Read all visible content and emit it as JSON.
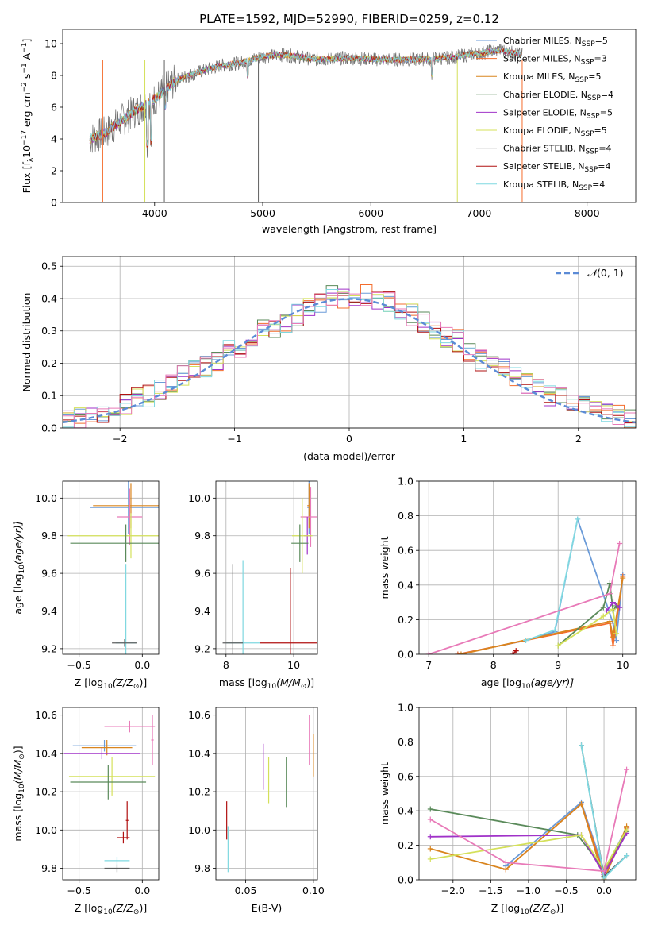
{
  "figure": {
    "title": "PLATE=1592, MJD=52990, FIBERID=0259, z=0.12",
    "series_colors": {
      "chabrier_miles": "#6b9bd8",
      "salpeter_miles": "#f46c2c",
      "kroupa_miles": "#d9851f",
      "chabrier_elodie": "#5a8a5a",
      "salpeter_elodie": "#a032c8",
      "kroupa_elodie": "#d4e05a",
      "chabrier_stelib": "#606060",
      "salpeter_stelib": "#b01010",
      "kroupa_stelib": "#7fd8e0",
      "kroupa_pink": "#e87ab8"
    }
  },
  "chart_data": [
    {
      "id": "spectrum",
      "type": "line",
      "title": "PLATE=1592, MJD=52990, FIBERID=0259, z=0.12",
      "xlabel": "wavelength [Angstrom, rest frame]",
      "ylabel_main": "Flux [f",
      "ylabel_sub": "λ",
      "ylabel_mid": "10",
      "ylabel_exp1": "−17",
      "ylabel_unit": " erg cm",
      "ylabel_exp2": "−2",
      "ylabel_unit2": " s",
      "ylabel_exp3": "−1",
      "ylabel_unit3": " A",
      "ylabel_exp4": "−1",
      "ylabel_end": "]",
      "xlim": [
        3150,
        8450
      ],
      "ylim": [
        0,
        10.9
      ],
      "xticks": [
        "4000",
        "5000",
        "6000",
        "7000",
        "8000"
      ],
      "yticks": [
        "0",
        "2",
        "4",
        "6",
        "8",
        "10"
      ],
      "grid": false,
      "legend_position": "right",
      "legend": [
        {
          "label": "Chabrier MILES, N",
          "sub": "SSP",
          "tail": "=5",
          "color": "#6b9bd8"
        },
        {
          "label": "Salpeter MILES, N",
          "sub": "SSP",
          "tail": "=3",
          "color": "#f46c2c"
        },
        {
          "label": "Kroupa MILES, N",
          "sub": "SSP",
          "tail": "=5",
          "color": "#d9851f"
        },
        {
          "label": "Chabrier ELODIE, N",
          "sub": "SSP",
          "tail": "=4",
          "color": "#5a8a5a"
        },
        {
          "label": "Salpeter ELODIE, N",
          "sub": "SSP",
          "tail": "=5",
          "color": "#a032c8"
        },
        {
          "label": "Kroupa ELODIE, N",
          "sub": "SSP",
          "tail": "=5",
          "color": "#d4e05a"
        },
        {
          "label": "Chabrier STELIB, N",
          "sub": "SSP",
          "tail": "=4",
          "color": "#606060"
        },
        {
          "label": "Salpeter STELIB, N",
          "sub": "SSP",
          "tail": "=4",
          "color": "#b01010"
        },
        {
          "label": "Kroupa STELIB, N",
          "sub": "SSP",
          "tail": "=4",
          "color": "#7fd8e0"
        }
      ],
      "continuum": {
        "x": [
          3400,
          3550,
          3700,
          3850,
          4000,
          4200,
          4400,
          4600,
          4800,
          5000,
          5200,
          5500,
          5800,
          6100,
          6400,
          6700,
          7000,
          7200,
          7400
        ],
        "y": [
          4.0,
          4.4,
          5.2,
          5.9,
          6.5,
          7.7,
          8.2,
          8.6,
          8.8,
          9.2,
          9.3,
          9.0,
          9.1,
          9.0,
          9.0,
          9.1,
          9.4,
          9.6,
          9.3
        ]
      }
    },
    {
      "id": "residuals",
      "type": "line",
      "xlabel": "(data-model)/error",
      "ylabel": "Normed distribution",
      "xlim": [
        -2.5,
        2.5
      ],
      "ylim": [
        0,
        0.53
      ],
      "xticks": [
        "−2",
        "−1",
        "0",
        "1",
        "2"
      ],
      "yticks": [
        "0.0",
        "0.1",
        "0.2",
        "0.3",
        "0.4",
        "0.5"
      ],
      "grid": true,
      "legend_position": "top-right",
      "legend_label_n": "𝒩",
      "legend_label_rest": "(0, 1)",
      "gaussian": {
        "mu": 0,
        "sigma": 1,
        "color": "#5b8bd6"
      },
      "histogram_x": [
        -2.5,
        -2.4,
        -2.3,
        -2.2,
        -2.1,
        -2.0,
        -1.9,
        -1.8,
        -1.7,
        -1.6,
        -1.5,
        -1.4,
        -1.3,
        -1.2,
        -1.1,
        -1.0,
        -0.9,
        -0.8,
        -0.7,
        -0.6,
        -0.5,
        -0.4,
        -0.3,
        -0.2,
        -0.1,
        0.0,
        0.1,
        0.2,
        0.3,
        0.4,
        0.5,
        0.6,
        0.7,
        0.8,
        0.9,
        1.0,
        1.1,
        1.2,
        1.3,
        1.4,
        1.5,
        1.6,
        1.7,
        1.8,
        1.9,
        2.0,
        2.1,
        2.2,
        2.3,
        2.4,
        2.5
      ],
      "histogram_y": [
        0.03,
        0.03,
        0.04,
        0.05,
        0.06,
        0.07,
        0.09,
        0.1,
        0.12,
        0.14,
        0.16,
        0.18,
        0.19,
        0.21,
        0.24,
        0.25,
        0.27,
        0.3,
        0.31,
        0.33,
        0.35,
        0.37,
        0.39,
        0.41,
        0.4,
        0.4,
        0.41,
        0.4,
        0.39,
        0.37,
        0.35,
        0.33,
        0.31,
        0.28,
        0.27,
        0.24,
        0.21,
        0.2,
        0.18,
        0.16,
        0.14,
        0.12,
        0.1,
        0.09,
        0.08,
        0.07,
        0.05,
        0.05,
        0.04,
        0.03
      ],
      "histogram_colors": [
        "#6b9bd8",
        "#f46c2c",
        "#5a8a5a",
        "#a032c8",
        "#d4e05a",
        "#b01010",
        "#7fd8e0",
        "#e87ab8"
      ]
    },
    {
      "id": "age_vs_Z",
      "type": "scatter",
      "xlabel_pre": "Z [log",
      "xlabel_sub": "10",
      "xlabel_post": "(Z/Z",
      "xlabel_sun": "⊙",
      "xlabel_end": ")]",
      "ylabel_pre": "age  [log",
      "ylabel_sub": "10",
      "ylabel_post": "(age/yr)]",
      "xlim": [
        -0.63,
        0.13
      ],
      "ylim": [
        9.17,
        10.09
      ],
      "xticks": [
        "−0.5",
        "0.0"
      ],
      "yticks": [
        "9.2",
        "9.4",
        "9.6",
        "9.8",
        "10.0"
      ],
      "grid": true,
      "errorbars": [
        {
          "x": -0.11,
          "y": 9.95,
          "xerr": 0.3,
          "yerr": 0.14,
          "color": "#6b9bd8"
        },
        {
          "x": -0.09,
          "y": 9.96,
          "xerr": 0.3,
          "yerr": 0.12,
          "color": "#d9851f"
        },
        {
          "x": -0.1,
          "y": 9.9,
          "xerr": 0.1,
          "yerr": 0.15,
          "color": "#e87ab8"
        },
        {
          "x": -0.09,
          "y": 9.8,
          "xerr": 0.5,
          "yerr": 0.12,
          "color": "#d4e05a"
        },
        {
          "x": -0.13,
          "y": 9.76,
          "xerr": 0.44,
          "yerr": 0.1,
          "color": "#5a8a5a"
        },
        {
          "x": -0.13,
          "y": 9.23,
          "xerr": 0.08,
          "yerr": 0.42,
          "color": "#7fd8e0"
        },
        {
          "x": -0.14,
          "y": 9.23,
          "xerr": 0.1,
          "yerr": 0.02,
          "color": "#606060"
        }
      ]
    },
    {
      "id": "age_vs_mass",
      "type": "scatter",
      "xlabel_pre": "mass [log",
      "xlabel_sub": "10",
      "xlabel_post": "(M/M",
      "xlabel_sun": "⊙",
      "xlabel_end": ")]",
      "xlim": [
        7.7,
        10.7
      ],
      "ylim": [
        9.17,
        10.09
      ],
      "xticks": [
        "8",
        "10"
      ],
      "yticks": [
        "9.2",
        "9.4",
        "9.6",
        "9.8",
        "10.0"
      ],
      "grid": true,
      "errorbars": [
        {
          "x": 10.45,
          "y": 9.95,
          "xerr": 0.05,
          "yerr": 0.14,
          "color": "#6b9bd8"
        },
        {
          "x": 10.45,
          "y": 9.96,
          "xerr": 0.05,
          "yerr": 0.12,
          "color": "#d9851f"
        },
        {
          "x": 10.5,
          "y": 9.9,
          "xerr": 0.3,
          "yerr": 0.16,
          "color": "#e87ab8"
        },
        {
          "x": 10.4,
          "y": 9.8,
          "xerr": 0.1,
          "yerr": 0.1,
          "color": "#a032c8"
        },
        {
          "x": 10.25,
          "y": 9.8,
          "xerr": 0.3,
          "yerr": 0.2,
          "color": "#d4e05a"
        },
        {
          "x": 10.18,
          "y": 9.76,
          "xerr": 0.25,
          "yerr": 0.1,
          "color": "#5a8a5a"
        },
        {
          "x": 9.9,
          "y": 9.23,
          "xerr": 0.9,
          "yerr": 0.4,
          "color": "#b01010"
        },
        {
          "x": 8.5,
          "y": 9.23,
          "xerr": 0.5,
          "yerr": 0.44,
          "color": "#7fd8e0"
        },
        {
          "x": 8.2,
          "y": 9.23,
          "xerr": 0.3,
          "yerr": 0.42,
          "color": "#606060"
        }
      ]
    },
    {
      "id": "weight_vs_age",
      "type": "line",
      "xlabel_pre": "age  [log",
      "xlabel_sub": "10",
      "xlabel_post": "(age/yr)]",
      "ylabel": "mass weight",
      "xlim": [
        6.85,
        10.2
      ],
      "ylim": [
        0,
        1.0
      ],
      "xticks": [
        "7",
        "8",
        "9",
        "10"
      ],
      "yticks": [
        "0.0",
        "0.2",
        "0.4",
        "0.6",
        "0.8",
        "1.0"
      ],
      "grid": true,
      "series": [
        {
          "color": "#6b9bd8",
          "x": [
            7.45,
            8.5,
            8.95,
            9.3,
            9.85,
            9.9,
            10.0
          ],
          "y": [
            0.0,
            0.08,
            0.13,
            0.78,
            0.18,
            0.08,
            0.46
          ]
        },
        {
          "color": "#f46c2c",
          "x": [
            7.45,
            9.8,
            9.85,
            10.0
          ],
          "y": [
            0.0,
            0.18,
            0.05,
            0.45
          ]
        },
        {
          "color": "#d9851f",
          "x": [
            7.5,
            9.8,
            9.85,
            10.0
          ],
          "y": [
            0.0,
            0.19,
            0.1,
            0.44
          ]
        },
        {
          "color": "#5a8a5a",
          "x": [
            9.0,
            9.7,
            9.8,
            9.85,
            9.9
          ],
          "y": [
            0.05,
            0.27,
            0.41,
            0.25,
            0.28
          ]
        },
        {
          "color": "#a032c8",
          "x": [
            9.75,
            9.85,
            9.95
          ],
          "y": [
            0.25,
            0.3,
            0.27
          ]
        },
        {
          "color": "#d4e05a",
          "x": [
            9.0,
            9.7,
            9.85,
            9.9
          ],
          "y": [
            0.05,
            0.22,
            0.26,
            0.12
          ]
        },
        {
          "color": "#7fd8e0",
          "x": [
            8.5,
            8.95,
            9.3
          ],
          "y": [
            0.08,
            0.14,
            0.78
          ]
        },
        {
          "color": "#b01010",
          "x": [
            8.3,
            8.35
          ],
          "y": [
            0.0,
            0.02
          ]
        },
        {
          "color": "#e87ab8",
          "x": [
            7.0,
            9.8,
            9.95
          ],
          "y": [
            0.0,
            0.35,
            0.64
          ]
        }
      ]
    },
    {
      "id": "mass_vs_Z",
      "type": "scatter",
      "xlabel_pre": "Z [log",
      "xlabel_sub": "10",
      "xlabel_post": "(Z/Z",
      "xlabel_sun": "⊙",
      "xlabel_end": ")]",
      "ylabel_pre": "mass [log",
      "ylabel_sub": "10",
      "ylabel_post": "(M/M",
      "ylabel_sun": "⊙",
      "ylabel_end": ")]",
      "xlim": [
        -0.63,
        0.13
      ],
      "ylim": [
        9.74,
        10.64
      ],
      "xticks": [
        "−0.5",
        "0.0"
      ],
      "yticks": [
        "9.8",
        "10.0",
        "10.2",
        "10.4",
        "10.6"
      ],
      "grid": true,
      "errorbars": [
        {
          "x": -0.1,
          "y": 10.54,
          "xerr": 0.2,
          "yerr": 0.03,
          "color": "#e87ab8"
        },
        {
          "x": 0.08,
          "y": 10.47,
          "xerr": 0.01,
          "yerr": 0.13,
          "color": "#e87ab8"
        },
        {
          "x": -0.3,
          "y": 10.44,
          "xerr": 0.25,
          "yerr": 0.03,
          "color": "#6b9bd8"
        },
        {
          "x": -0.28,
          "y": 10.43,
          "xerr": 0.2,
          "yerr": 0.04,
          "color": "#d9851f"
        },
        {
          "x": -0.32,
          "y": 10.4,
          "xerr": 0.3,
          "yerr": 0.03,
          "color": "#a032c8"
        },
        {
          "x": -0.24,
          "y": 10.28,
          "xerr": 0.34,
          "yerr": 0.1,
          "color": "#d4e05a"
        },
        {
          "x": -0.27,
          "y": 10.25,
          "xerr": 0.3,
          "yerr": 0.09,
          "color": "#5a8a5a"
        },
        {
          "x": -0.12,
          "y": 10.05,
          "xerr": 0.01,
          "yerr": 0.1,
          "color": "#b01010"
        },
        {
          "x": -0.15,
          "y": 9.96,
          "xerr": 0.05,
          "yerr": 0.03,
          "color": "#b01010"
        },
        {
          "x": -0.2,
          "y": 9.84,
          "xerr": 0.1,
          "yerr": 0.02,
          "color": "#7fd8e0"
        },
        {
          "x": -0.2,
          "y": 9.8,
          "xerr": 0.1,
          "yerr": 0.02,
          "color": "#606060"
        }
      ]
    },
    {
      "id": "mass_vs_EBV",
      "type": "scatter",
      "xlabel": "E(B-V)",
      "xlim": [
        0.028,
        0.103
      ],
      "ylim": [
        9.74,
        10.64
      ],
      "xticks": [
        "0.05",
        "0.10"
      ],
      "yticks": [
        "9.8",
        "10.0",
        "10.2",
        "10.4",
        "10.6"
      ],
      "grid": true,
      "errorbars": [
        {
          "x": 0.097,
          "y": 10.47,
          "xerr": 0.0,
          "yerr": 0.13,
          "color": "#e87ab8"
        },
        {
          "x": 0.1,
          "y": 10.39,
          "xerr": 0.0,
          "yerr": 0.11,
          "color": "#d9851f"
        },
        {
          "x": 0.063,
          "y": 10.33,
          "xerr": 0.0,
          "yerr": 0.12,
          "color": "#a032c8"
        },
        {
          "x": 0.067,
          "y": 10.26,
          "xerr": 0.0,
          "yerr": 0.12,
          "color": "#d4e05a"
        },
        {
          "x": 0.08,
          "y": 10.25,
          "xerr": 0.0,
          "yerr": 0.13,
          "color": "#5a8a5a"
        },
        {
          "x": 0.036,
          "y": 10.05,
          "xerr": 0.0,
          "yerr": 0.1,
          "color": "#b01010"
        },
        {
          "x": 0.037,
          "y": 9.9,
          "xerr": 0.0,
          "yerr": 0.12,
          "color": "#7fd8e0"
        }
      ]
    },
    {
      "id": "weight_vs_Z",
      "type": "line",
      "xlabel_pre": "Z [log",
      "xlabel_sub": "10",
      "xlabel_post": "(Z/Z",
      "xlabel_sun": "⊙",
      "xlabel_end": ")]",
      "ylabel": "mass weight",
      "xlim": [
        -2.45,
        0.42
      ],
      "ylim": [
        0,
        1.0
      ],
      "xticks": [
        "−2.0",
        "−1.5",
        "−1.0",
        "−0.5",
        "0.0"
      ],
      "yticks": [
        "0.0",
        "0.2",
        "0.4",
        "0.6",
        "0.8",
        "1.0"
      ],
      "grid": true,
      "series": [
        {
          "color": "#6b9bd8",
          "x": [
            -1.3,
            -0.3,
            0.0,
            0.3
          ],
          "y": [
            0.08,
            0.45,
            0.05,
            0.3
          ]
        },
        {
          "color": "#f46c2c",
          "x": [
            -1.3,
            -0.3,
            0.0,
            0.3
          ],
          "y": [
            0.06,
            0.44,
            0.03,
            0.3
          ]
        },
        {
          "color": "#d9851f",
          "x": [
            -2.3,
            -1.3,
            -0.3,
            0.0,
            0.3
          ],
          "y": [
            0.18,
            0.06,
            0.44,
            0.0,
            0.31
          ]
        },
        {
          "color": "#5a8a5a",
          "x": [
            -2.3,
            -0.35,
            0.0,
            0.3
          ],
          "y": [
            0.41,
            0.26,
            0.06,
            0.28
          ]
        },
        {
          "color": "#a032c8",
          "x": [
            -2.3,
            -0.3,
            0.0,
            0.3
          ],
          "y": [
            0.25,
            0.26,
            0.03,
            0.27
          ]
        },
        {
          "color": "#d4e05a",
          "x": [
            -2.3,
            -0.3,
            0.0,
            0.3
          ],
          "y": [
            0.12,
            0.26,
            0.06,
            0.29
          ]
        },
        {
          "color": "#606060",
          "x": [
            -0.3,
            0.0,
            0.3
          ],
          "y": [
            0.78,
            0.02,
            0.14
          ]
        },
        {
          "color": "#7fd8e0",
          "x": [
            -0.3,
            0.0,
            0.3
          ],
          "y": [
            0.78,
            0.01,
            0.14
          ]
        },
        {
          "color": "#e87ab8",
          "x": [
            -2.3,
            -1.3,
            0.0,
            0.3
          ],
          "y": [
            0.35,
            0.1,
            0.05,
            0.64
          ]
        }
      ]
    }
  ]
}
